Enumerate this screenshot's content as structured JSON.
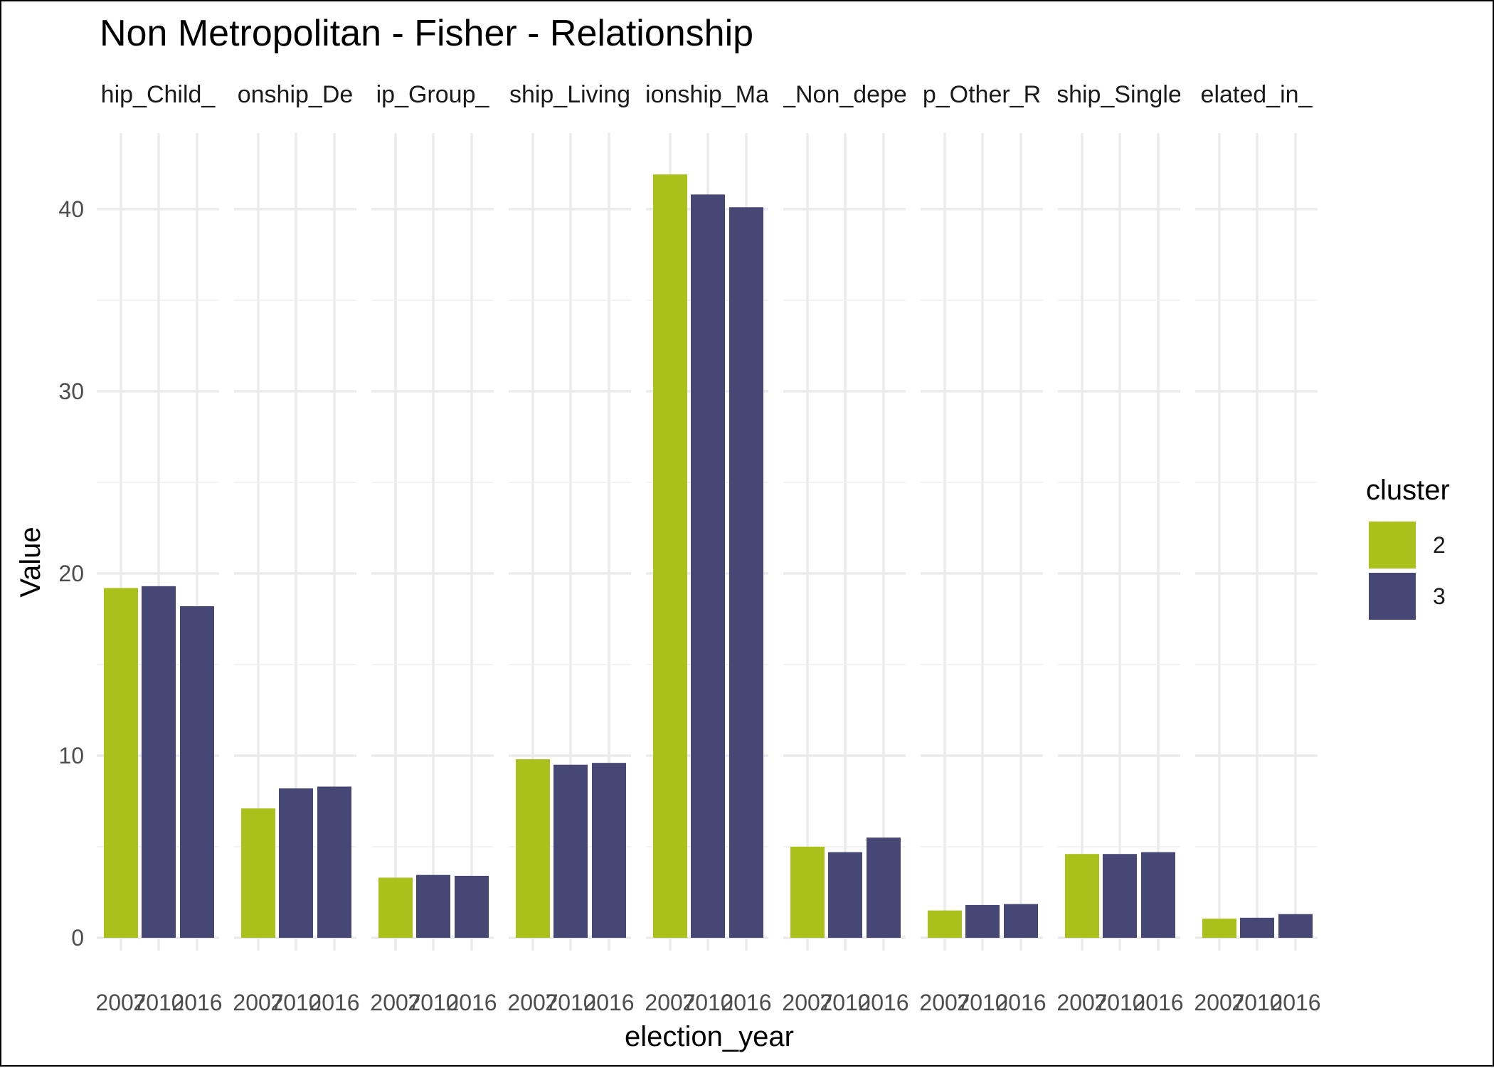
{
  "colors": {
    "cluster_2": "#a9c11a",
    "cluster_3": "#464775"
  },
  "chart_data": {
    "type": "bar",
    "title": "Non Metropolitan - Fisher - Relationship",
    "xlabel": "election_year",
    "ylabel": "Value",
    "ylim": [
      0,
      43
    ],
    "y_ticks": [
      0,
      10,
      20,
      30,
      40
    ],
    "grid": true,
    "legend": {
      "title": "cluster",
      "position": "right",
      "entries": [
        "2",
        "3"
      ]
    },
    "categories": [
      "2007",
      "2010",
      "2016"
    ],
    "panels": [
      {
        "label": "hip_Child_",
        "bars": [
          {
            "x": "2007",
            "cluster": "2",
            "value": 19.2
          },
          {
            "x": "2010",
            "cluster": "3",
            "value": 19.3
          },
          {
            "x": "2016",
            "cluster": "3",
            "value": 18.2
          }
        ]
      },
      {
        "label": "onship_De",
        "bars": [
          {
            "x": "2007",
            "cluster": "2",
            "value": 7.1
          },
          {
            "x": "2010",
            "cluster": "3",
            "value": 8.2
          },
          {
            "x": "2016",
            "cluster": "3",
            "value": 8.3
          }
        ]
      },
      {
        "label": "ip_Group_",
        "bars": [
          {
            "x": "2007",
            "cluster": "2",
            "value": 3.3
          },
          {
            "x": "2010",
            "cluster": "3",
            "value": 3.45
          },
          {
            "x": "2016",
            "cluster": "3",
            "value": 3.4
          }
        ]
      },
      {
        "label": "ship_Living",
        "bars": [
          {
            "x": "2007",
            "cluster": "2",
            "value": 9.8
          },
          {
            "x": "2010",
            "cluster": "3",
            "value": 9.5
          },
          {
            "x": "2016",
            "cluster": "3",
            "value": 9.6
          }
        ]
      },
      {
        "label": "ionship_Ma",
        "bars": [
          {
            "x": "2007",
            "cluster": "2",
            "value": 41.9
          },
          {
            "x": "2010",
            "cluster": "3",
            "value": 40.8
          },
          {
            "x": "2016",
            "cluster": "3",
            "value": 40.1
          }
        ]
      },
      {
        "label": "_Non_depe",
        "bars": [
          {
            "x": "2007",
            "cluster": "2",
            "value": 5.0
          },
          {
            "x": "2010",
            "cluster": "3",
            "value": 4.7
          },
          {
            "x": "2016",
            "cluster": "3",
            "value": 5.5
          }
        ]
      },
      {
        "label": "p_Other_R",
        "bars": [
          {
            "x": "2007",
            "cluster": "2",
            "value": 1.5
          },
          {
            "x": "2010",
            "cluster": "3",
            "value": 1.8
          },
          {
            "x": "2016",
            "cluster": "3",
            "value": 1.85
          }
        ]
      },
      {
        "label": "ship_Single",
        "bars": [
          {
            "x": "2007",
            "cluster": "2",
            "value": 4.6
          },
          {
            "x": "2010",
            "cluster": "3",
            "value": 4.6
          },
          {
            "x": "2016",
            "cluster": "3",
            "value": 4.7
          }
        ]
      },
      {
        "label": "elated_in_",
        "bars": [
          {
            "x": "2007",
            "cluster": "2",
            "value": 1.05
          },
          {
            "x": "2010",
            "cluster": "3",
            "value": 1.1
          },
          {
            "x": "2016",
            "cluster": "3",
            "value": 1.3
          }
        ]
      }
    ]
  }
}
